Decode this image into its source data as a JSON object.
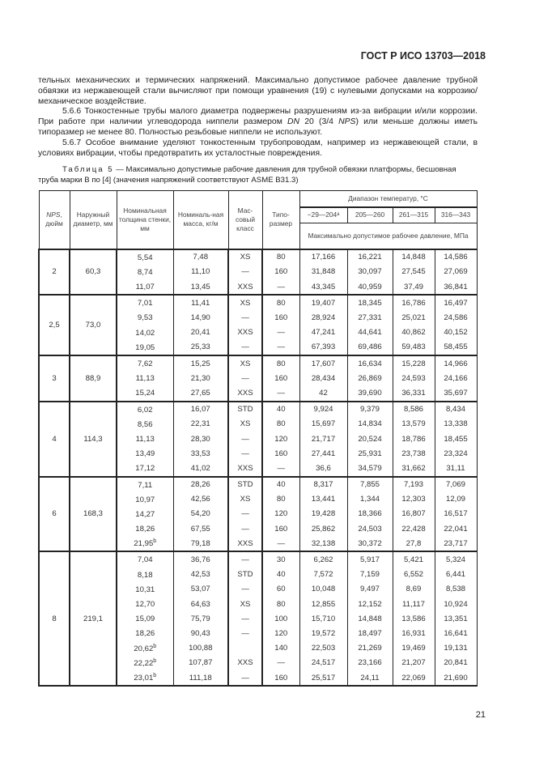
{
  "header": "ГОСТ Р ИСО 13703—2018",
  "paragraphs": [
    "тельных механических и термических напряжений. Максимально допустимое рабочее давление трубной обвязки из нержавеющей стали вычисляют при помощи уравнения (19) с нулевыми допусками на коррозию/механическое воздействие.",
    {
      "a": "5.6.6 Тонкостенные трубы малого диаметра подвержены разрушениям из-за вибрации и/или коррозии. При работе при наличии углеводорода ниппели размером ",
      "b": "DN",
      "c": " 20 (3/4 ",
      "d": "NPS",
      "e": ") или меньше должны иметь типоразмер не менее 80. Полностью резьбовые ниппели не используют."
    },
    "5.6.7 Особое внимание уделяют тонкостенным трубопроводам, например из нержавеющей стали, в условиях вибрации, чтобы предотвратить их усталостные повреждения."
  ],
  "caption": {
    "label": "Таблица 5",
    "text": " — Максимально допустимые рабочие давления для трубной обвязки платформы, бесшовная труба марки В по [4] (значения напряжений соответствуют ASME B31.3)"
  },
  "table": {
    "headers": {
      "nps": "NPS, дюйм",
      "od": "Наружный диаметр, мм",
      "wall": "Номинальная толщина стенки, мм",
      "mass": "Номиналь-ная масса, кг/м",
      "class": "Мас-совый класс",
      "schedule": "Типо-размер",
      "temp_range": "Диапазон температур, °С",
      "temps": [
        "−29—204ᵃ",
        "205—260",
        "261—315",
        "316—343"
      ],
      "pressure": "Максимально допустимое рабочее давление, МПа"
    },
    "groups": [
      {
        "nps": "2",
        "od": "60,3",
        "rows": [
          [
            "5,54",
            "",
            "7,48",
            "XS",
            "80",
            "17,166",
            "16,221",
            "14,848",
            "14,586"
          ],
          [
            "8,74",
            "",
            "11,10",
            "—",
            "160",
            "31,848",
            "30,097",
            "27,545",
            "27,069"
          ],
          [
            "11,07",
            "",
            "13,45",
            "XXS",
            "—",
            "43,345",
            "40,959",
            "37,49",
            "36,841"
          ]
        ]
      },
      {
        "nps": "2,5",
        "od": "73,0",
        "rows": [
          [
            "7,01",
            "",
            "11,41",
            "XS",
            "80",
            "19,407",
            "18,345",
            "16,786",
            "16,497"
          ],
          [
            "9,53",
            "",
            "14,90",
            "—",
            "160",
            "28,924",
            "27,331",
            "25,021",
            "24,586"
          ],
          [
            "14,02",
            "",
            "20,41",
            "XXS",
            "—",
            "47,241",
            "44,641",
            "40,862",
            "40,152"
          ],
          [
            "19,05",
            "",
            "25,33",
            "—",
            "—",
            "67,393",
            "69,486",
            "59,483",
            "58,455"
          ]
        ]
      },
      {
        "nps": "3",
        "od": "88,9",
        "rows": [
          [
            "7,62",
            "",
            "15,25",
            "XS",
            "80",
            "17,607",
            "16,634",
            "15,228",
            "14,966"
          ],
          [
            "11,13",
            "",
            "21,30",
            "—",
            "160",
            "28,434",
            "26,869",
            "24,593",
            "24,166"
          ],
          [
            "15,24",
            "",
            "27,65",
            "XXS",
            "—",
            "42",
            "39,690",
            "36,331",
            "35,697"
          ]
        ]
      },
      {
        "nps": "4",
        "od": "114,3",
        "rows": [
          [
            "6,02",
            "",
            "16,07",
            "STD",
            "40",
            "9,924",
            "9,379",
            "8,586",
            "8,434"
          ],
          [
            "8,56",
            "",
            "22,31",
            "XS",
            "80",
            "15,697",
            "14,834",
            "13,579",
            "13,338"
          ],
          [
            "11,13",
            "",
            "28,30",
            "—",
            "120",
            "21,717",
            "20,524",
            "18,786",
            "18,455"
          ],
          [
            "13,49",
            "",
            "33,53",
            "—",
            "160",
            "27,441",
            "25,931",
            "23,738",
            "23,324"
          ],
          [
            "17,12",
            "",
            "41,02",
            "XXS",
            "—",
            "36,6",
            "34,579",
            "31,662",
            "31,11"
          ]
        ]
      },
      {
        "nps": "6",
        "od": "168,3",
        "rows": [
          [
            "7,11",
            "",
            "28,26",
            "STD",
            "40",
            "8,317",
            "7,855",
            "7,193",
            "7,069"
          ],
          [
            "10,97",
            "",
            "42,56",
            "XS",
            "80",
            "13,441",
            "1,344",
            "12,303",
            "12,09"
          ],
          [
            "14,27",
            "",
            "54,20",
            "—",
            "120",
            "19,428",
            "18,366",
            "16,807",
            "16,517"
          ],
          [
            "18,26",
            "",
            "67,55",
            "—",
            "160",
            "25,862",
            "24,503",
            "22,428",
            "22,041"
          ],
          [
            "21,95",
            "b",
            "79,18",
            "XXS",
            "—",
            "32,138",
            "30,372",
            "27,8",
            "23,717"
          ]
        ]
      },
      {
        "nps": "8",
        "od": "219,1",
        "rows": [
          [
            "7,04",
            "",
            "36,76",
            "—",
            "30",
            "6,262",
            "5,917",
            "5,421",
            "5,324"
          ],
          [
            "8,18",
            "",
            "42,53",
            "STD",
            "40",
            "7,572",
            "7,159",
            "6,552",
            "6,441"
          ],
          [
            "10,31",
            "",
            "53,07",
            "—",
            "60",
            "10,048",
            "9,497",
            "8,69",
            "8,538"
          ],
          [
            "12,70",
            "",
            "64,63",
            "XS",
            "80",
            "12,855",
            "12,152",
            "11,117",
            "10,924"
          ],
          [
            "15,09",
            "",
            "75,79",
            "—",
            "100",
            "15,710",
            "14,848",
            "13,586",
            "13,351"
          ],
          [
            "18,26",
            "",
            "90,43",
            "—",
            "120",
            "19,572",
            "18,497",
            "16,931",
            "16,641"
          ],
          [
            "20,62",
            "b",
            "100,88",
            "",
            "140",
            "22,503",
            "21,269",
            "19,469",
            "19,131"
          ],
          [
            "22,22",
            "b",
            "107,87",
            "XXS",
            "—",
            "24,517",
            "23,166",
            "21,207",
            "20,841"
          ],
          [
            "23,01",
            "b",
            "111,18",
            "—",
            "160",
            "25,517",
            "24,11",
            "22,069",
            "21,690"
          ]
        ]
      }
    ]
  },
  "page_number": "21"
}
